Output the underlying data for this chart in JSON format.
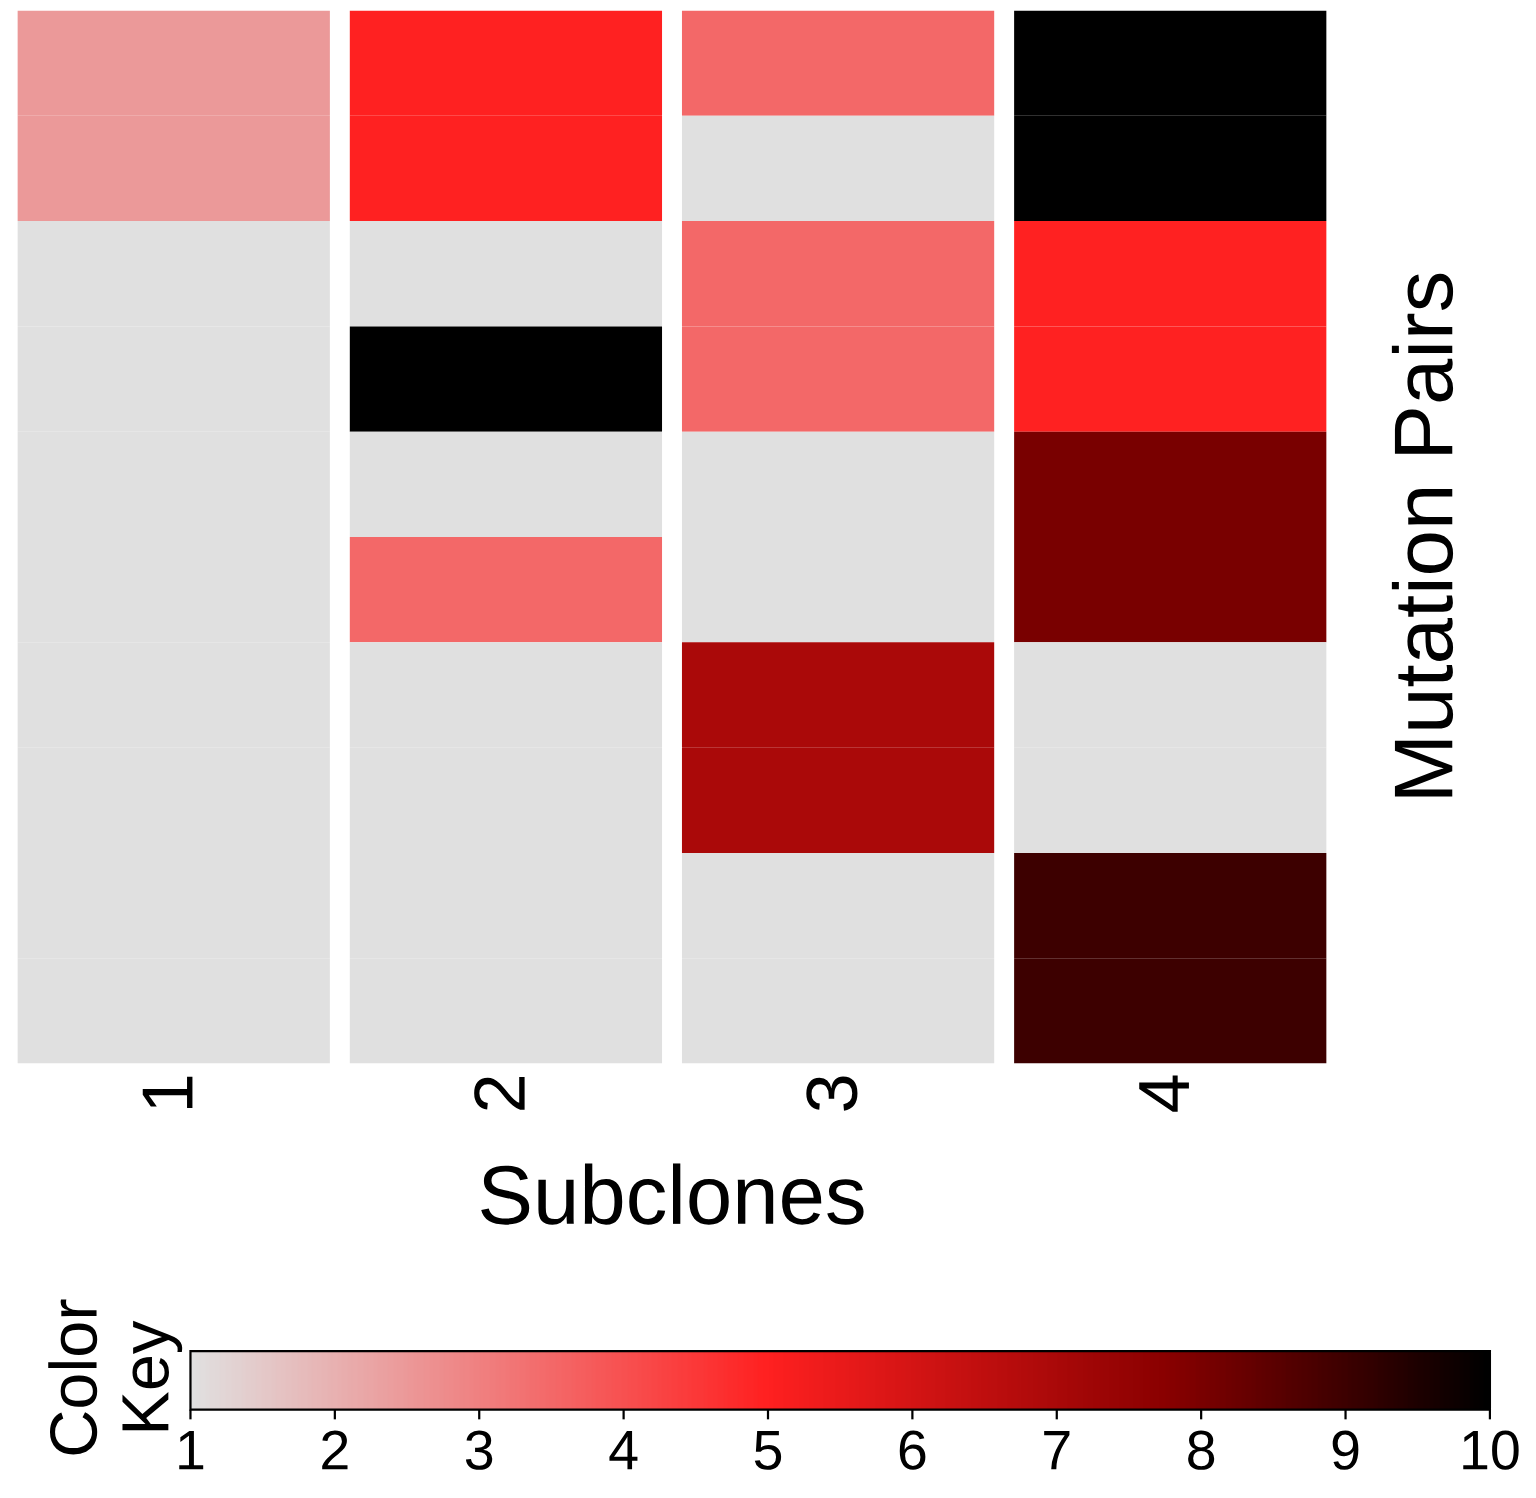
{
  "chart_data": {
    "type": "heatmap",
    "xlabel": "Subclones",
    "ylabel": "Mutation Pairs",
    "clabel": "Color Key",
    "categories": [
      "1",
      "2",
      "3",
      "4"
    ],
    "y_categories": [
      null,
      null,
      null,
      null,
      null,
      null,
      null,
      null,
      null,
      null
    ],
    "cells": [
      [
        2.5,
        5,
        3.5,
        10
      ],
      [
        2.5,
        5,
        1,
        10
      ],
      [
        1,
        1,
        3.5,
        5
      ],
      [
        1,
        10,
        3.5,
        5
      ],
      [
        1,
        1,
        1,
        8
      ],
      [
        1,
        3.5,
        1,
        8
      ],
      [
        1,
        1,
        7,
        1
      ],
      [
        1,
        1,
        7,
        1
      ],
      [
        1,
        1,
        1,
        9
      ],
      [
        1,
        1,
        1,
        9
      ]
    ],
    "clim": [
      1,
      10
    ],
    "cticks": [
      1,
      2,
      3,
      4,
      5,
      6,
      7,
      8,
      9,
      10
    ]
  }
}
